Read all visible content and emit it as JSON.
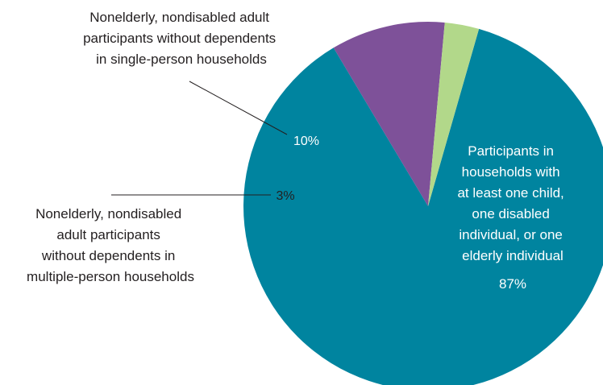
{
  "chart_data": {
    "type": "pie",
    "title": "",
    "slices": [
      {
        "label_lines": [
          "Participants in",
          "households with",
          "at least one child,",
          "one disabled",
          "individual, or one",
          "elderly individual"
        ],
        "value": 87,
        "value_label": "87%",
        "color": "#00849f"
      },
      {
        "label_lines": [
          "Nonelderly, nondisabled adult",
          "participants without dependents",
          "in single-person households"
        ],
        "value": 10,
        "value_label": "10%",
        "color": "#7e5199"
      },
      {
        "label_lines": [
          "Nonelderly, nondisabled",
          "adult participants",
          "without dependents in",
          "multiple-person households"
        ],
        "value": 3,
        "value_label": "3%",
        "color": "#b2d88a"
      }
    ]
  }
}
